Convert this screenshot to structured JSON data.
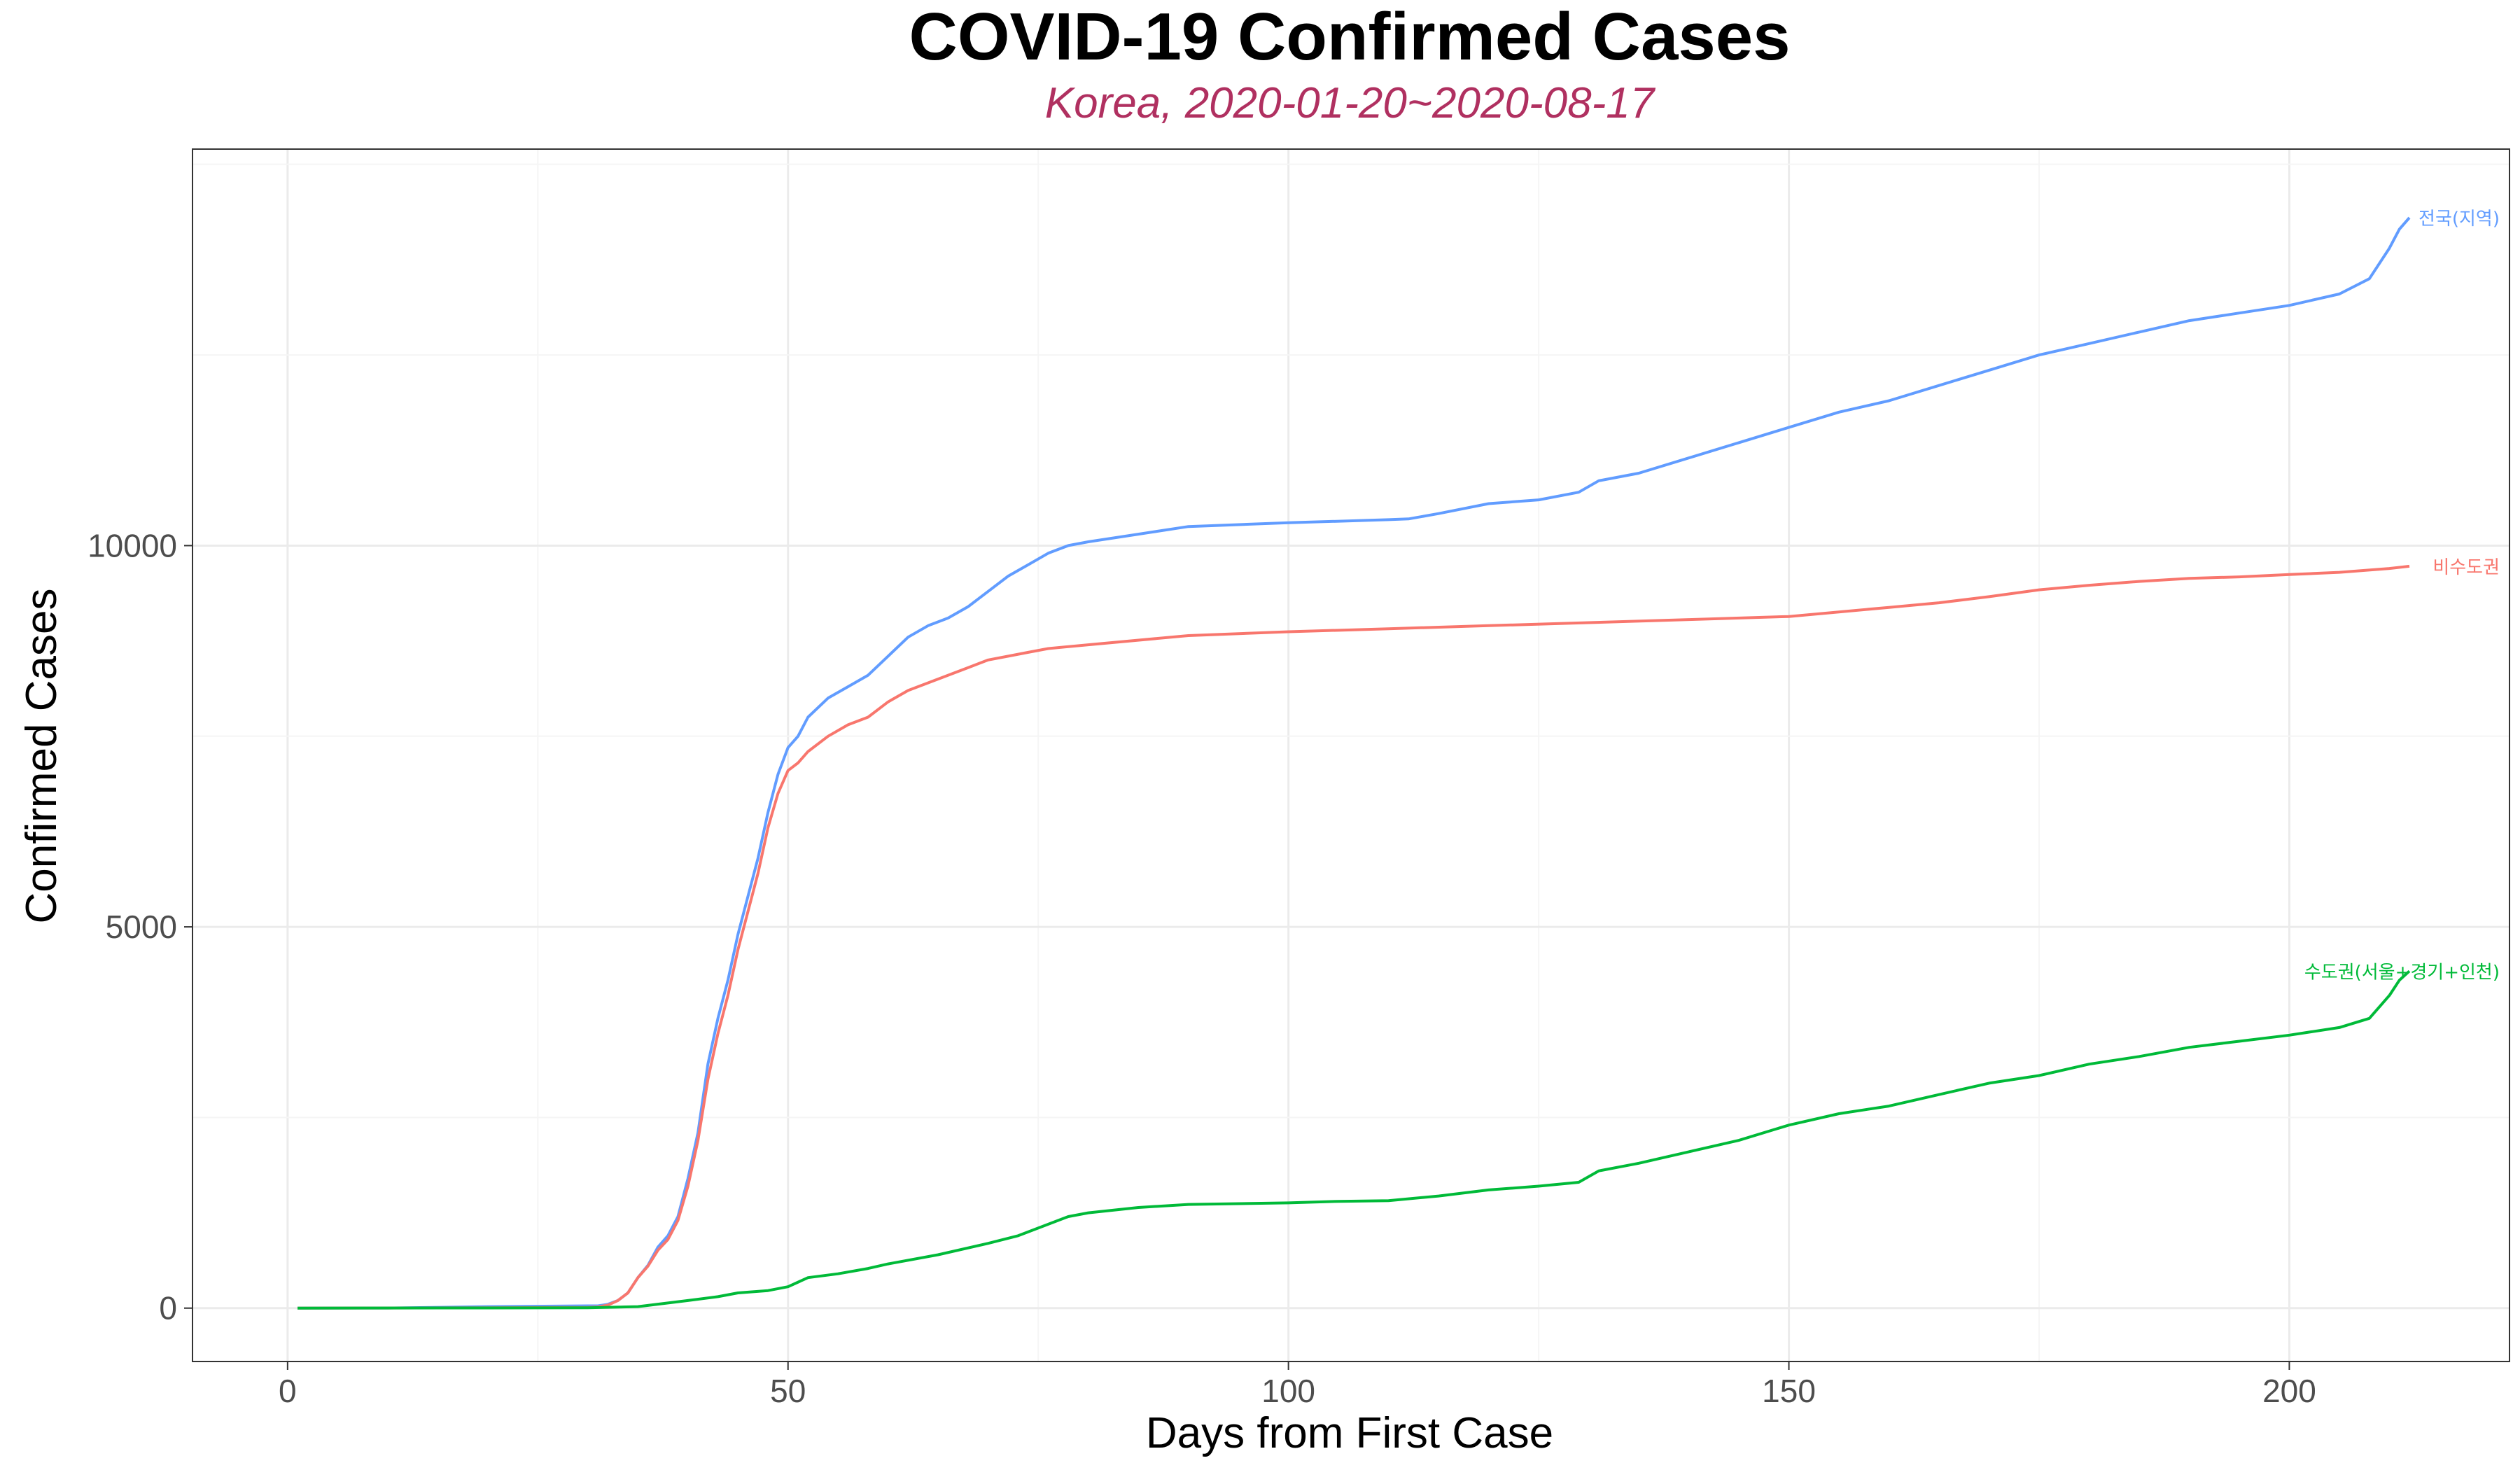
{
  "chart_data": {
    "type": "line",
    "title": "COVID-19 Confirmed Cases",
    "subtitle": "Korea, 2020-01-20~2020-08-17",
    "xlabel": "Days from First Case",
    "ylabel": "Confirmed Cases",
    "xlim": [
      -9.5,
      222
    ],
    "ylim": [
      -700,
      15200
    ],
    "x_ticks": [
      0,
      50,
      100,
      150,
      200
    ],
    "y_ticks": [
      0,
      5000,
      10000
    ],
    "grid": true,
    "legend": "none (series labeled at line ends)",
    "series": [
      {
        "name": "전국(지역)",
        "color": "#619cff",
        "points": [
          [
            1,
            0
          ],
          [
            10,
            1
          ],
          [
            20,
            20
          ],
          [
            30,
            30
          ],
          [
            31,
            30
          ],
          [
            32,
            50
          ],
          [
            33,
            100
          ],
          [
            34,
            200
          ],
          [
            35,
            400
          ],
          [
            36,
            560
          ],
          [
            37,
            800
          ],
          [
            38,
            950
          ],
          [
            39,
            1200
          ],
          [
            40,
            1700
          ],
          [
            41,
            2300
          ],
          [
            42,
            3200
          ],
          [
            43,
            3800
          ],
          [
            44,
            4300
          ],
          [
            45,
            4900
          ],
          [
            46,
            5400
          ],
          [
            47,
            5900
          ],
          [
            48,
            6500
          ],
          [
            49,
            7000
          ],
          [
            50,
            7350
          ],
          [
            51,
            7500
          ],
          [
            52,
            7750
          ],
          [
            54,
            8000
          ],
          [
            56,
            8150
          ],
          [
            58,
            8300
          ],
          [
            60,
            8550
          ],
          [
            62,
            8800
          ],
          [
            64,
            8950
          ],
          [
            66,
            9050
          ],
          [
            68,
            9200
          ],
          [
            70,
            9400
          ],
          [
            72,
            9600
          ],
          [
            74,
            9750
          ],
          [
            76,
            9900
          ],
          [
            78,
            10000
          ],
          [
            80,
            10050
          ],
          [
            85,
            10150
          ],
          [
            90,
            10250
          ],
          [
            100,
            10300
          ],
          [
            110,
            10340
          ],
          [
            112,
            10350
          ],
          [
            115,
            10420
          ],
          [
            120,
            10550
          ],
          [
            125,
            10600
          ],
          [
            129,
            10700
          ],
          [
            131,
            10850
          ],
          [
            135,
            10950
          ],
          [
            140,
            11150
          ],
          [
            145,
            11350
          ],
          [
            150,
            11550
          ],
          [
            155,
            11750
          ],
          [
            160,
            11900
          ],
          [
            165,
            12100
          ],
          [
            170,
            12300
          ],
          [
            175,
            12500
          ],
          [
            180,
            12650
          ],
          [
            185,
            12800
          ],
          [
            190,
            12950
          ],
          [
            195,
            13050
          ],
          [
            200,
            13150
          ],
          [
            205,
            13300
          ],
          [
            208,
            13500
          ],
          [
            210,
            13900
          ],
          [
            211,
            14150
          ],
          [
            212,
            14300
          ]
        ],
        "label": "전국(지역)"
      },
      {
        "name": "비수도권",
        "color": "#f8766d",
        "points": [
          [
            1,
            0
          ],
          [
            10,
            1
          ],
          [
            20,
            5
          ],
          [
            30,
            10
          ],
          [
            31,
            15
          ],
          [
            32,
            40
          ],
          [
            33,
            100
          ],
          [
            34,
            200
          ],
          [
            35,
            400
          ],
          [
            36,
            550
          ],
          [
            37,
            760
          ],
          [
            38,
            900
          ],
          [
            39,
            1150
          ],
          [
            40,
            1600
          ],
          [
            41,
            2200
          ],
          [
            42,
            3000
          ],
          [
            43,
            3600
          ],
          [
            44,
            4100
          ],
          [
            45,
            4700
          ],
          [
            46,
            5200
          ],
          [
            47,
            5700
          ],
          [
            48,
            6300
          ],
          [
            49,
            6750
          ],
          [
            50,
            7050
          ],
          [
            51,
            7150
          ],
          [
            52,
            7300
          ],
          [
            54,
            7500
          ],
          [
            56,
            7650
          ],
          [
            58,
            7750
          ],
          [
            60,
            7950
          ],
          [
            62,
            8100
          ],
          [
            64,
            8200
          ],
          [
            66,
            8300
          ],
          [
            68,
            8400
          ],
          [
            70,
            8500
          ],
          [
            72,
            8550
          ],
          [
            74,
            8600
          ],
          [
            76,
            8650
          ],
          [
            80,
            8700
          ],
          [
            90,
            8820
          ],
          [
            100,
            8870
          ],
          [
            110,
            8910
          ],
          [
            120,
            8950
          ],
          [
            130,
            8990
          ],
          [
            140,
            9030
          ],
          [
            150,
            9070
          ],
          [
            155,
            9130
          ],
          [
            160,
            9190
          ],
          [
            165,
            9250
          ],
          [
            170,
            9330
          ],
          [
            175,
            9420
          ],
          [
            180,
            9480
          ],
          [
            185,
            9530
          ],
          [
            190,
            9570
          ],
          [
            195,
            9590
          ],
          [
            200,
            9620
          ],
          [
            205,
            9650
          ],
          [
            210,
            9700
          ],
          [
            212,
            9730
          ]
        ],
        "label": "비수도권"
      },
      {
        "name": "수도권(서울+경기+인천)",
        "color": "#00ba38",
        "points": [
          [
            1,
            0
          ],
          [
            20,
            2
          ],
          [
            30,
            5
          ],
          [
            35,
            20
          ],
          [
            40,
            100
          ],
          [
            43,
            150
          ],
          [
            45,
            200
          ],
          [
            48,
            230
          ],
          [
            50,
            280
          ],
          [
            52,
            400
          ],
          [
            55,
            450
          ],
          [
            58,
            520
          ],
          [
            60,
            580
          ],
          [
            65,
            700
          ],
          [
            70,
            850
          ],
          [
            73,
            950
          ],
          [
            76,
            1100
          ],
          [
            78,
            1200
          ],
          [
            80,
            1250
          ],
          [
            85,
            1320
          ],
          [
            90,
            1360
          ],
          [
            100,
            1380
          ],
          [
            105,
            1400
          ],
          [
            110,
            1410
          ],
          [
            115,
            1470
          ],
          [
            120,
            1550
          ],
          [
            125,
            1600
          ],
          [
            129,
            1650
          ],
          [
            131,
            1800
          ],
          [
            135,
            1900
          ],
          [
            140,
            2050
          ],
          [
            145,
            2200
          ],
          [
            150,
            2400
          ],
          [
            155,
            2550
          ],
          [
            160,
            2650
          ],
          [
            165,
            2800
          ],
          [
            170,
            2950
          ],
          [
            175,
            3050
          ],
          [
            180,
            3200
          ],
          [
            185,
            3300
          ],
          [
            190,
            3420
          ],
          [
            195,
            3500
          ],
          [
            200,
            3580
          ],
          [
            205,
            3680
          ],
          [
            208,
            3800
          ],
          [
            210,
            4100
          ],
          [
            211,
            4300
          ],
          [
            212,
            4420
          ]
        ],
        "label": "수도권(서울+경기+인천)"
      }
    ]
  }
}
